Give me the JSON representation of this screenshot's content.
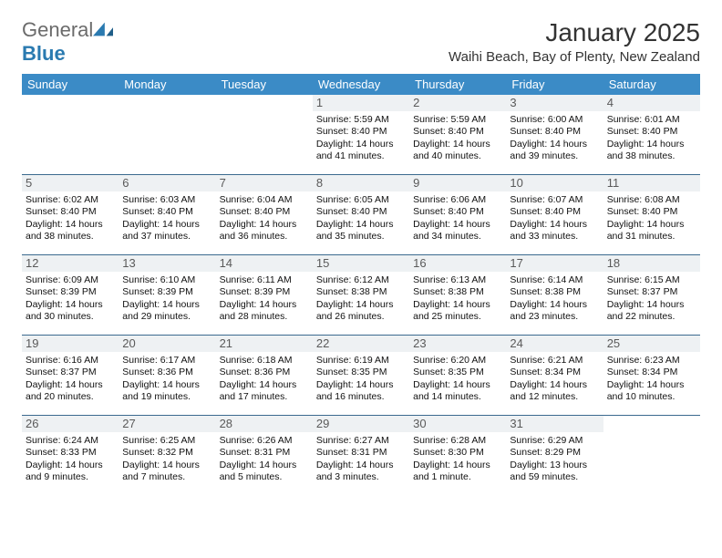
{
  "brand": {
    "part1": "General",
    "part2": "Blue"
  },
  "header": {
    "month_title": "January 2025",
    "location": "Waihi Beach, Bay of Plenty, New Zealand"
  },
  "colors": {
    "header_bg": "#3b8bc6",
    "row_border": "#3b6a8f",
    "daynum_bg": "#eef1f3",
    "logo_gray": "#6b6b6b",
    "logo_blue": "#2a7ab0"
  },
  "weekdays": [
    "Sunday",
    "Monday",
    "Tuesday",
    "Wednesday",
    "Thursday",
    "Friday",
    "Saturday"
  ],
  "weeks": [
    [
      null,
      null,
      null,
      {
        "d": "1",
        "sr": "5:59 AM",
        "ss": "8:40 PM",
        "dl": "14 hours and 41 minutes."
      },
      {
        "d": "2",
        "sr": "5:59 AM",
        "ss": "8:40 PM",
        "dl": "14 hours and 40 minutes."
      },
      {
        "d": "3",
        "sr": "6:00 AM",
        "ss": "8:40 PM",
        "dl": "14 hours and 39 minutes."
      },
      {
        "d": "4",
        "sr": "6:01 AM",
        "ss": "8:40 PM",
        "dl": "14 hours and 38 minutes."
      }
    ],
    [
      {
        "d": "5",
        "sr": "6:02 AM",
        "ss": "8:40 PM",
        "dl": "14 hours and 38 minutes."
      },
      {
        "d": "6",
        "sr": "6:03 AM",
        "ss": "8:40 PM",
        "dl": "14 hours and 37 minutes."
      },
      {
        "d": "7",
        "sr": "6:04 AM",
        "ss": "8:40 PM",
        "dl": "14 hours and 36 minutes."
      },
      {
        "d": "8",
        "sr": "6:05 AM",
        "ss": "8:40 PM",
        "dl": "14 hours and 35 minutes."
      },
      {
        "d": "9",
        "sr": "6:06 AM",
        "ss": "8:40 PM",
        "dl": "14 hours and 34 minutes."
      },
      {
        "d": "10",
        "sr": "6:07 AM",
        "ss": "8:40 PM",
        "dl": "14 hours and 33 minutes."
      },
      {
        "d": "11",
        "sr": "6:08 AM",
        "ss": "8:40 PM",
        "dl": "14 hours and 31 minutes."
      }
    ],
    [
      {
        "d": "12",
        "sr": "6:09 AM",
        "ss": "8:39 PM",
        "dl": "14 hours and 30 minutes."
      },
      {
        "d": "13",
        "sr": "6:10 AM",
        "ss": "8:39 PM",
        "dl": "14 hours and 29 minutes."
      },
      {
        "d": "14",
        "sr": "6:11 AM",
        "ss": "8:39 PM",
        "dl": "14 hours and 28 minutes."
      },
      {
        "d": "15",
        "sr": "6:12 AM",
        "ss": "8:38 PM",
        "dl": "14 hours and 26 minutes."
      },
      {
        "d": "16",
        "sr": "6:13 AM",
        "ss": "8:38 PM",
        "dl": "14 hours and 25 minutes."
      },
      {
        "d": "17",
        "sr": "6:14 AM",
        "ss": "8:38 PM",
        "dl": "14 hours and 23 minutes."
      },
      {
        "d": "18",
        "sr": "6:15 AM",
        "ss": "8:37 PM",
        "dl": "14 hours and 22 minutes."
      }
    ],
    [
      {
        "d": "19",
        "sr": "6:16 AM",
        "ss": "8:37 PM",
        "dl": "14 hours and 20 minutes."
      },
      {
        "d": "20",
        "sr": "6:17 AM",
        "ss": "8:36 PM",
        "dl": "14 hours and 19 minutes."
      },
      {
        "d": "21",
        "sr": "6:18 AM",
        "ss": "8:36 PM",
        "dl": "14 hours and 17 minutes."
      },
      {
        "d": "22",
        "sr": "6:19 AM",
        "ss": "8:35 PM",
        "dl": "14 hours and 16 minutes."
      },
      {
        "d": "23",
        "sr": "6:20 AM",
        "ss": "8:35 PM",
        "dl": "14 hours and 14 minutes."
      },
      {
        "d": "24",
        "sr": "6:21 AM",
        "ss": "8:34 PM",
        "dl": "14 hours and 12 minutes."
      },
      {
        "d": "25",
        "sr": "6:23 AM",
        "ss": "8:34 PM",
        "dl": "14 hours and 10 minutes."
      }
    ],
    [
      {
        "d": "26",
        "sr": "6:24 AM",
        "ss": "8:33 PM",
        "dl": "14 hours and 9 minutes."
      },
      {
        "d": "27",
        "sr": "6:25 AM",
        "ss": "8:32 PM",
        "dl": "14 hours and 7 minutes."
      },
      {
        "d": "28",
        "sr": "6:26 AM",
        "ss": "8:31 PM",
        "dl": "14 hours and 5 minutes."
      },
      {
        "d": "29",
        "sr": "6:27 AM",
        "ss": "8:31 PM",
        "dl": "14 hours and 3 minutes."
      },
      {
        "d": "30",
        "sr": "6:28 AM",
        "ss": "8:30 PM",
        "dl": "14 hours and 1 minute."
      },
      {
        "d": "31",
        "sr": "6:29 AM",
        "ss": "8:29 PM",
        "dl": "13 hours and 59 minutes."
      },
      null
    ]
  ],
  "labels": {
    "sunrise": "Sunrise:",
    "sunset": "Sunset:",
    "daylight": "Daylight:"
  }
}
